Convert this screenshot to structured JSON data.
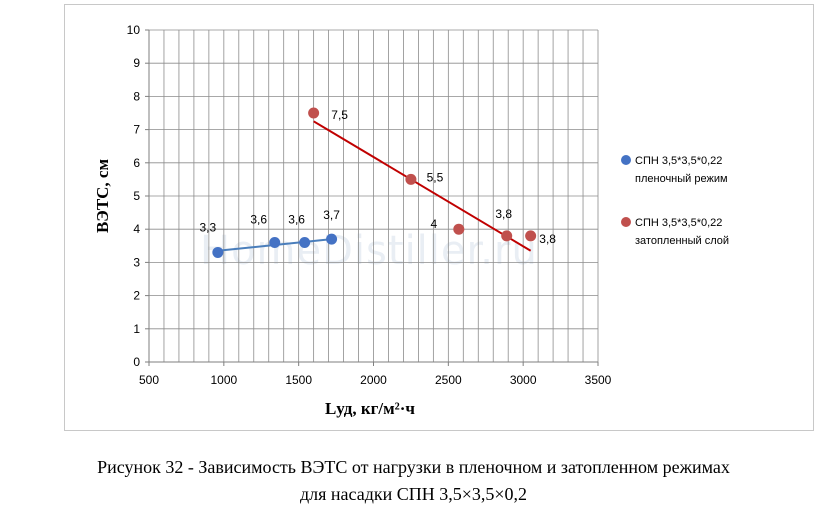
{
  "chart_data": {
    "type": "scatter",
    "xlabel": "Lуд, кг/м²·ч",
    "ylabel": "ВЭТС, см",
    "xlim": [
      500,
      3500
    ],
    "ylim": [
      0,
      10
    ],
    "xticks": [
      500,
      1000,
      1500,
      2000,
      2500,
      3000,
      3500
    ],
    "yticks": [
      0,
      1,
      2,
      3,
      4,
      5,
      6,
      7,
      8,
      9,
      10
    ],
    "grid": true,
    "legend_position": "right",
    "series": [
      {
        "name": "СПН 3,5*3,5*0,22 пленочный режим",
        "legend_line1": "СПН 3,5*3,5*0,22",
        "legend_line2": "пленочный режим",
        "color": "#4472c4",
        "trend_color": "#4a7ebb",
        "x": [
          960,
          1340,
          1540,
          1720
        ],
        "y": [
          3.3,
          3.6,
          3.6,
          3.7
        ],
        "labels": [
          "3,3",
          "3,6",
          "3,6",
          "3,7"
        ],
        "trendline": {
          "x": [
            960,
            1720
          ],
          "y": [
            3.35,
            3.7
          ]
        }
      },
      {
        "name": "СПН 3,5*3,5*0,22 затопленный слой",
        "legend_line1": "СПН 3,5*3,5*0,22",
        "legend_line2": "затопленный слой",
        "color": "#c0504d",
        "trend_color": "#c00000",
        "x": [
          1600,
          2250,
          2570,
          2890,
          3050
        ],
        "y": [
          7.5,
          5.5,
          4.0,
          3.8,
          3.8
        ],
        "labels": [
          "7,5",
          "5,5",
          "4",
          "3,8",
          "3,8"
        ],
        "trendline": {
          "x": [
            1600,
            3050
          ],
          "y": [
            7.25,
            3.35
          ]
        }
      }
    ]
  },
  "watermark": "HomeDistiller.ru",
  "caption": {
    "line1": "Рисунок 32 - Зависимость ВЭТС от нагрузки в пленочном и затопленном режимах",
    "line2": "для насадки СПН 3,5×3,5×0,2"
  }
}
